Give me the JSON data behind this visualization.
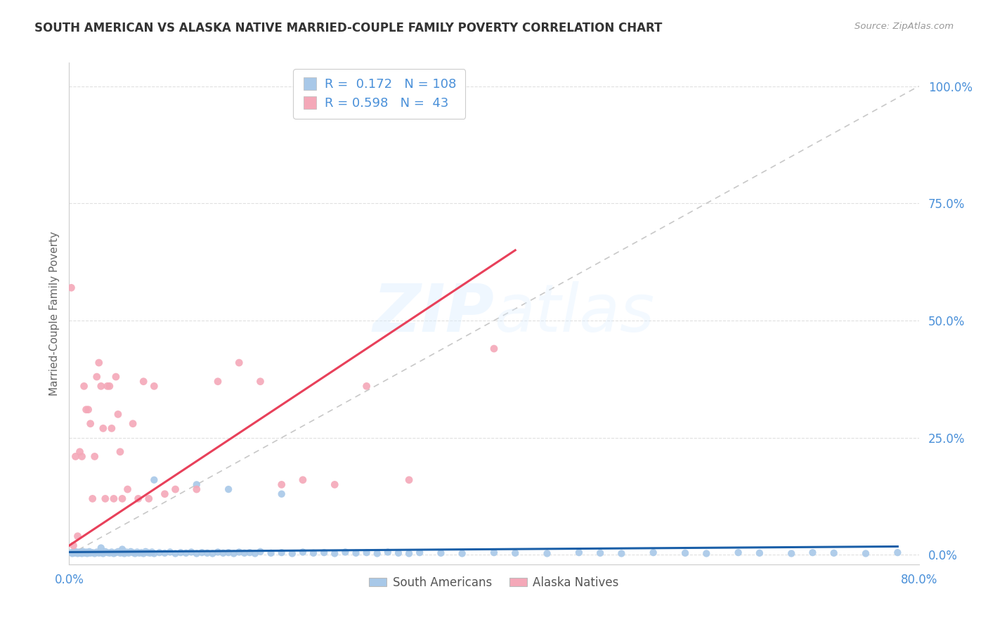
{
  "title": "SOUTH AMERICAN VS ALASKA NATIVE MARRIED-COUPLE FAMILY POVERTY CORRELATION CHART",
  "source": "Source: ZipAtlas.com",
  "ylabel": "Married-Couple Family Poverty",
  "yticks": [
    "0.0%",
    "25.0%",
    "50.0%",
    "75.0%",
    "100.0%"
  ],
  "ytick_vals": [
    0.0,
    0.25,
    0.5,
    0.75,
    1.0
  ],
  "xlim": [
    0.0,
    0.8
  ],
  "ylim": [
    -0.02,
    1.05
  ],
  "watermark": "ZIPatlas",
  "blue_R": 0.172,
  "blue_N": 108,
  "pink_R": 0.598,
  "pink_N": 43,
  "blue_color": "#a8c8e8",
  "pink_color": "#f4a8b8",
  "blue_line_color": "#1a5fa8",
  "pink_line_color": "#e8405a",
  "diagonal_color": "#c8c8c8",
  "background_color": "#ffffff",
  "grid_color": "#e0e0e0",
  "title_color": "#333333",
  "axis_label_color": "#4a90d9",
  "legend_text_color": "#4a90d9",
  "bottom_legend_color": "#555555",
  "blue_scatter_x": [
    0.002,
    0.003,
    0.004,
    0.005,
    0.006,
    0.007,
    0.008,
    0.009,
    0.01,
    0.011,
    0.012,
    0.013,
    0.014,
    0.015,
    0.016,
    0.017,
    0.018,
    0.019,
    0.02,
    0.022,
    0.024,
    0.026,
    0.028,
    0.03,
    0.032,
    0.034,
    0.036,
    0.038,
    0.04,
    0.042,
    0.044,
    0.046,
    0.048,
    0.05,
    0.052,
    0.054,
    0.056,
    0.058,
    0.06,
    0.062,
    0.064,
    0.066,
    0.068,
    0.07,
    0.072,
    0.074,
    0.076,
    0.078,
    0.08,
    0.085,
    0.09,
    0.095,
    0.1,
    0.105,
    0.11,
    0.115,
    0.12,
    0.125,
    0.13,
    0.135,
    0.14,
    0.145,
    0.15,
    0.155,
    0.16,
    0.165,
    0.17,
    0.175,
    0.18,
    0.19,
    0.2,
    0.21,
    0.22,
    0.23,
    0.24,
    0.25,
    0.26,
    0.27,
    0.28,
    0.29,
    0.3,
    0.31,
    0.32,
    0.33,
    0.35,
    0.37,
    0.4,
    0.42,
    0.45,
    0.48,
    0.5,
    0.52,
    0.55,
    0.58,
    0.6,
    0.63,
    0.65,
    0.68,
    0.7,
    0.72,
    0.75,
    0.78,
    0.03,
    0.05,
    0.08,
    0.12,
    0.15,
    0.2
  ],
  "blue_scatter_y": [
    0.005,
    0.003,
    0.006,
    0.004,
    0.007,
    0.005,
    0.003,
    0.006,
    0.004,
    0.005,
    0.003,
    0.007,
    0.005,
    0.004,
    0.006,
    0.003,
    0.005,
    0.007,
    0.004,
    0.005,
    0.003,
    0.006,
    0.004,
    0.005,
    0.003,
    0.007,
    0.005,
    0.004,
    0.006,
    0.003,
    0.005,
    0.007,
    0.004,
    0.005,
    0.003,
    0.006,
    0.004,
    0.007,
    0.005,
    0.003,
    0.006,
    0.004,
    0.005,
    0.003,
    0.007,
    0.005,
    0.004,
    0.006,
    0.003,
    0.005,
    0.004,
    0.006,
    0.003,
    0.005,
    0.004,
    0.006,
    0.003,
    0.005,
    0.004,
    0.003,
    0.006,
    0.004,
    0.005,
    0.003,
    0.006,
    0.004,
    0.005,
    0.003,
    0.007,
    0.004,
    0.005,
    0.003,
    0.006,
    0.004,
    0.005,
    0.003,
    0.006,
    0.004,
    0.005,
    0.003,
    0.006,
    0.004,
    0.003,
    0.005,
    0.004,
    0.003,
    0.005,
    0.004,
    0.003,
    0.005,
    0.004,
    0.003,
    0.005,
    0.004,
    0.003,
    0.005,
    0.004,
    0.003,
    0.005,
    0.004,
    0.003,
    0.005,
    0.015,
    0.012,
    0.16,
    0.15,
    0.14,
    0.13
  ],
  "pink_scatter_x": [
    0.002,
    0.004,
    0.006,
    0.008,
    0.01,
    0.012,
    0.014,
    0.016,
    0.018,
    0.02,
    0.022,
    0.024,
    0.026,
    0.028,
    0.03,
    0.032,
    0.034,
    0.036,
    0.038,
    0.04,
    0.042,
    0.044,
    0.046,
    0.048,
    0.05,
    0.055,
    0.06,
    0.065,
    0.07,
    0.075,
    0.08,
    0.09,
    0.1,
    0.12,
    0.14,
    0.16,
    0.18,
    0.2,
    0.22,
    0.25,
    0.28,
    0.32,
    0.4
  ],
  "pink_scatter_y": [
    0.57,
    0.02,
    0.21,
    0.04,
    0.22,
    0.21,
    0.36,
    0.31,
    0.31,
    0.28,
    0.12,
    0.21,
    0.38,
    0.41,
    0.36,
    0.27,
    0.12,
    0.36,
    0.36,
    0.27,
    0.12,
    0.38,
    0.3,
    0.22,
    0.12,
    0.14,
    0.28,
    0.12,
    0.37,
    0.12,
    0.36,
    0.13,
    0.14,
    0.14,
    0.37,
    0.41,
    0.37,
    0.15,
    0.16,
    0.15,
    0.36,
    0.16,
    0.44
  ],
  "blue_line_x": [
    0.0,
    0.78
  ],
  "blue_line_y": [
    0.006,
    0.018
  ],
  "pink_line_x": [
    0.0,
    0.42
  ],
  "pink_line_y": [
    0.02,
    0.65
  ]
}
